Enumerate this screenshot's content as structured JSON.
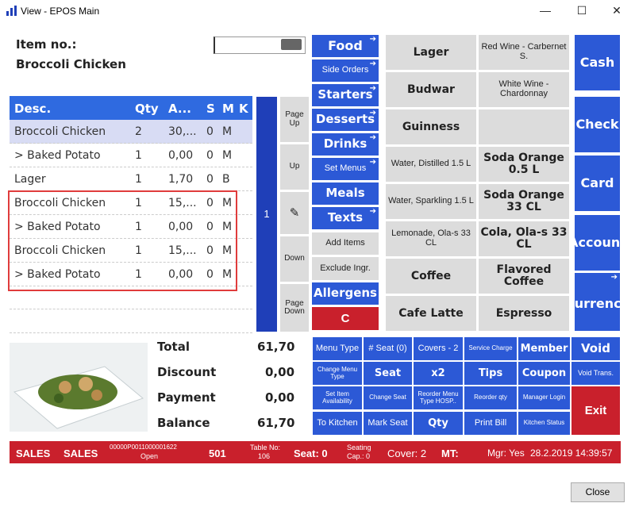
{
  "window": {
    "title": "View - EPOS Main",
    "minimize": "—",
    "maximize": "☐",
    "close": "✕"
  },
  "item": {
    "label": "Item no.:",
    "name": "Broccoli Chicken",
    "input": ""
  },
  "grid": {
    "headers": [
      "Desc.",
      "Qty",
      "A...",
      "S",
      "M",
      "K"
    ],
    "rows": [
      {
        "desc": "Broccoli Chicken",
        "qty": "2",
        "amt": "30,...",
        "s": "0",
        "m": "M"
      },
      {
        "desc": "> Baked Potato",
        "qty": "1",
        "amt": "0,00",
        "s": "0",
        "m": "M"
      },
      {
        "desc": "Lager",
        "qty": "1",
        "amt": "1,70",
        "s": "0",
        "m": "B"
      },
      {
        "desc": "Broccoli Chicken",
        "qty": "1",
        "amt": "15,...",
        "s": "0",
        "m": "M"
      },
      {
        "desc": "> Baked Potato",
        "qty": "1",
        "amt": "0,00",
        "s": "0",
        "m": "M"
      },
      {
        "desc": "Broccoli Chicken",
        "qty": "1",
        "amt": "15,...",
        "s": "0",
        "m": "M"
      },
      {
        "desc": "> Baked Potato",
        "qty": "1",
        "amt": "0,00",
        "s": "0",
        "m": "M"
      }
    ]
  },
  "seat_number": "1",
  "nav": {
    "page_up": "Page Up",
    "up": "Up",
    "down": "Down",
    "page_down": "Page Down"
  },
  "categories": [
    "Food",
    "Side Orders",
    "Starters",
    "Desserts",
    "Drinks",
    "Set Menus",
    "Meals",
    "Texts",
    "Add Items",
    "Exclude Ingr.",
    "Allergens",
    "C"
  ],
  "products": [
    "Lager",
    "Red Wine - Carbernet S.",
    "Budwar",
    "White Wine - Chardonnay",
    "Guinness",
    "",
    "Water, Distilled 1.5 L",
    "Soda Orange 0.5 L",
    "Water, Sparkling 1.5 L",
    "Soda Orange 33 CL",
    "Lemonade, Ola-s 33 CL",
    "Cola, Ola-s 33 CL",
    "Coffee",
    "Flavored Coffee",
    "Cafe Latte",
    "Espresso"
  ],
  "payments": [
    "Cash",
    "Check",
    "Card",
    "Account",
    "Currency"
  ],
  "totals": {
    "total_label": "Total",
    "total": "61,70",
    "discount_label": "Discount",
    "discount": "0,00",
    "payment_label": "Payment",
    "payment": "0,00",
    "balance_label": "Balance",
    "balance": "61,70"
  },
  "functions": [
    "Menu Type",
    "# Seat (0)",
    "Covers - 2",
    "Service Charge",
    "Member",
    "Void",
    "Change Menu Type",
    "Seat",
    "x2",
    "Tips",
    "Coupon",
    "Void Trans.",
    "Set Item Availability",
    "Change Seat",
    "Reorder Menu Type HOSP..",
    "Reorder qty",
    "Manager Login",
    "Exit",
    "To Kitchen",
    "Mark Seat",
    "Qty",
    "Print Bill",
    "Kitchen Status"
  ],
  "status": {
    "mode1": "SALES",
    "mode2": "SALES",
    "order": "00000P0011000001622",
    "order_state": "Open",
    "num": "501",
    "table_label": "Table No:",
    "table": "106",
    "seat": "Seat: 0",
    "seating_label": "Seating",
    "seating": "Cap.: 0",
    "cover": "Cover: 2",
    "mt": "MT:",
    "mgr": "Mgr: Yes",
    "datetime": "28.2.2019 14:39:57"
  },
  "footer": {
    "close": "Close"
  },
  "colors": {
    "blue": "#2c59d6",
    "red": "#c9202c",
    "gray": "#dcdcdc"
  }
}
